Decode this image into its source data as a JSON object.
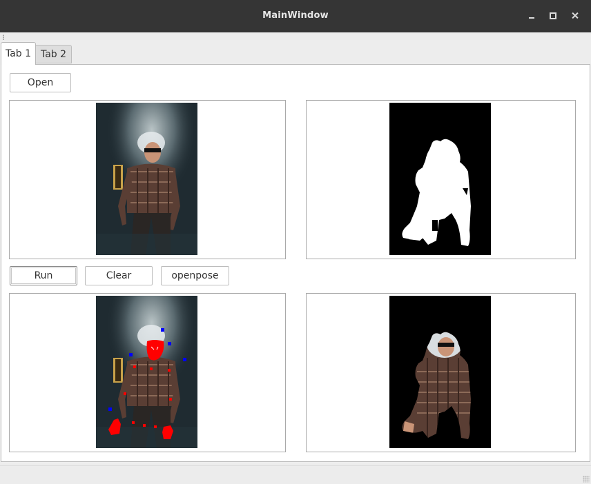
{
  "window": {
    "title": "MainWindow"
  },
  "tabs": [
    {
      "label": "Tab 1",
      "active": true
    },
    {
      "label": "Tab 2",
      "active": false
    }
  ],
  "buttons": {
    "open": "Open",
    "run": "Run",
    "clear": "Clear",
    "openpose": "openpose"
  },
  "views": [
    {
      "name": "original-image-view",
      "content": "original photo"
    },
    {
      "name": "mask-image-view",
      "content": "binary segmentation mask"
    },
    {
      "name": "pose-image-view",
      "content": "photo with pose keypoints"
    },
    {
      "name": "segmented-image-view",
      "content": "segmented person on black"
    }
  ],
  "colors": {
    "titlebar": "#353535",
    "keypoint_red": "#ff0000",
    "keypoint_blue": "#0000ff",
    "mask_fg": "#ffffff",
    "mask_bg": "#000000"
  }
}
